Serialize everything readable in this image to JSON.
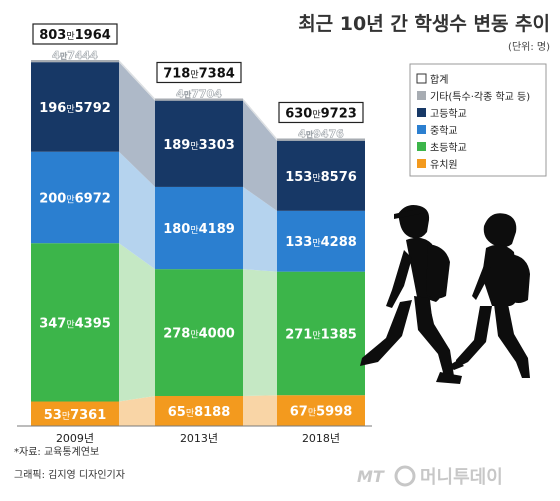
{
  "chart_data": {
    "type": "bar",
    "stacked": true,
    "title": "최근 10년 간 학생수 변동 추이",
    "unit_label": "(단위: 명)",
    "categories": [
      "2009년",
      "2013년",
      "2018년"
    ],
    "totals": [
      8031964,
      7187384,
      6309723
    ],
    "total_labels": [
      {
        "man": "803",
        "unit": "만",
        "rest": "1964"
      },
      {
        "man": "718",
        "unit": "만",
        "rest": "7384"
      },
      {
        "man": "630",
        "unit": "만",
        "rest": "9723"
      }
    ],
    "legend_total_label": "합계",
    "series": [
      {
        "name": "유치원",
        "color": "#f39a1e",
        "band_color": "#f9d5a6",
        "values": [
          537361,
          658188,
          675998
        ],
        "labels": [
          {
            "man": "53",
            "unit": "만",
            "rest": "7361"
          },
          {
            "man": "65",
            "unit": "만",
            "rest": "8188"
          },
          {
            "man": "67",
            "unit": "만",
            "rest": "5998"
          }
        ]
      },
      {
        "name": "초등학교",
        "color": "#3cb54a",
        "band_color": "#c5e8c4",
        "values": [
          3474395,
          2784000,
          2711385
        ],
        "labels": [
          {
            "man": "347",
            "unit": "만",
            "rest": "4395"
          },
          {
            "man": "278",
            "unit": "만",
            "rest": "4000"
          },
          {
            "man": "271",
            "unit": "만",
            "rest": "1385"
          }
        ]
      },
      {
        "name": "중학교",
        "color": "#2b7fd0",
        "band_color": "#b5d3ee",
        "values": [
          2006972,
          1804189,
          1334288
        ],
        "labels": [
          {
            "man": "200",
            "unit": "만",
            "rest": "6972"
          },
          {
            "man": "180",
            "unit": "만",
            "rest": "4189"
          },
          {
            "man": "133",
            "unit": "만",
            "rest": "4288"
          }
        ]
      },
      {
        "name": "고등학교",
        "color": "#173866",
        "band_color": "#aeb9c8",
        "values": [
          1965792,
          1893303,
          1538576
        ],
        "labels": [
          {
            "man": "196",
            "unit": "만",
            "rest": "5792"
          },
          {
            "man": "189",
            "unit": "만",
            "rest": "3303"
          },
          {
            "man": "153",
            "unit": "만",
            "rest": "8576"
          }
        ]
      },
      {
        "name": "기타(특수·각종 학교 등)",
        "color": "#a7acb2",
        "band_color": "#dcdfe2",
        "values": [
          47444,
          47704,
          49476
        ],
        "labels": [
          {
            "man": "4",
            "unit": "만",
            "rest": "7444"
          },
          {
            "man": "4",
            "unit": "만",
            "rest": "7704"
          },
          {
            "man": "4",
            "unit": "만",
            "rest": "9476"
          }
        ]
      }
    ],
    "legend_order": [
      "합계",
      "기타(특수·각종 학교 등)",
      "고등학교",
      "중학교",
      "초등학교",
      "유치원"
    ]
  },
  "source": "*자료: 교육통계연보",
  "credit": "그래픽: 김지영 디자인기자",
  "logo": {
    "mt": "MT",
    "name": "머니투데이"
  },
  "colors": {
    "title": "#333333",
    "silhouette": "#0d0d0d"
  }
}
